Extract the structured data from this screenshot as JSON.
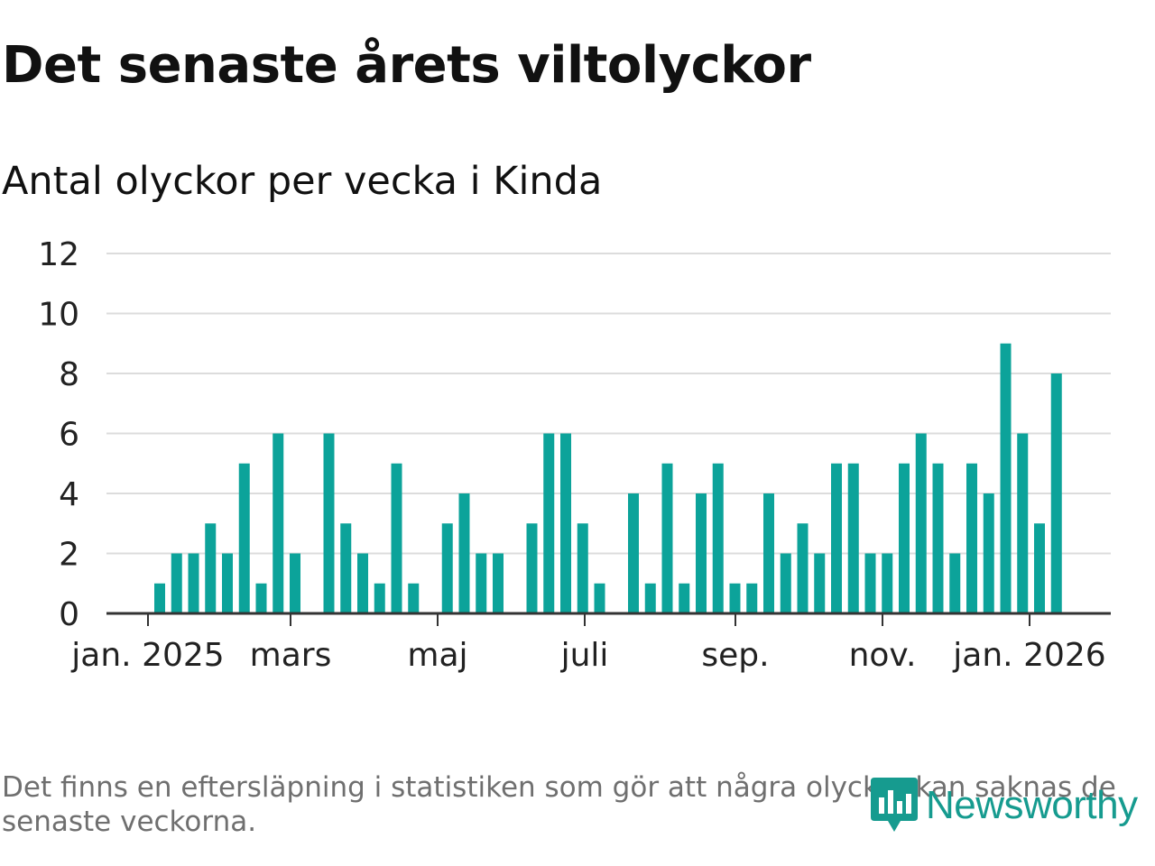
{
  "title": "Det senaste årets viltolyckor",
  "subtitle": "Antal olyckor per vecka i Kinda",
  "footnote": "Det finns en eftersläpning i statistiken som gör att några olyckor kan saknas de senaste veckorna.",
  "brand": "Newsworthy",
  "colors": {
    "bar": "#0ca39a",
    "grid": "#dcdcdc",
    "axis": "#333333",
    "brand": "#169b8f"
  },
  "chart_data": {
    "type": "bar",
    "title": "Antal olyckor per vecka i Kinda",
    "xlabel": "",
    "ylabel": "",
    "ylim": [
      0,
      12
    ],
    "yticks": [
      0,
      2,
      4,
      6,
      8,
      10,
      12
    ],
    "grid": true,
    "legend": "none",
    "x_start": "2025-01-06",
    "x_unit": "week",
    "values": [
      1,
      2,
      2,
      3,
      2,
      5,
      1,
      6,
      2,
      0,
      6,
      3,
      2,
      1,
      5,
      1,
      0,
      3,
      4,
      2,
      2,
      0,
      3,
      6,
      6,
      3,
      1,
      0,
      4,
      1,
      5,
      1,
      4,
      5,
      1,
      1,
      4,
      2,
      3,
      2,
      5,
      5,
      2,
      2,
      5,
      6,
      5,
      2,
      5,
      4,
      9,
      6,
      3,
      8
    ],
    "month_ticks": [
      {
        "label": "jan. 2025",
        "date": "2025-01-01"
      },
      {
        "label": "mars",
        "date": "2025-03-01"
      },
      {
        "label": "maj",
        "date": "2025-05-01"
      },
      {
        "label": "juli",
        "date": "2025-07-01"
      },
      {
        "label": "sep.",
        "date": "2025-09-01"
      },
      {
        "label": "nov.",
        "date": "2025-11-01"
      },
      {
        "label": "jan. 2026",
        "date": "2026-01-01"
      }
    ]
  }
}
